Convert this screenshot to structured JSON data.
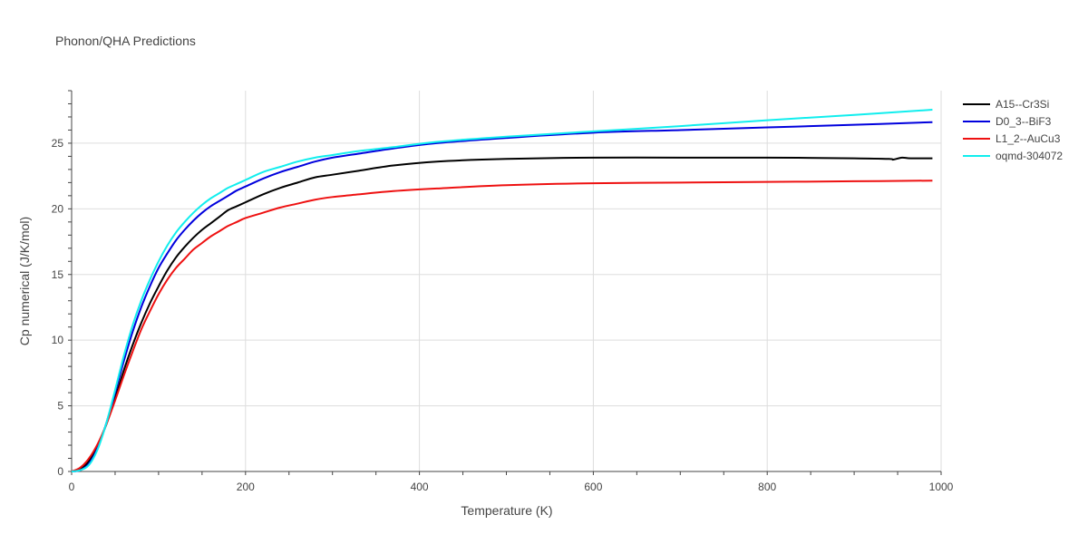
{
  "chart_data": {
    "type": "line",
    "title": "Phonon/QHA Predictions",
    "xlabel": "Temperature (K)",
    "ylabel": "Cp numerical (J/K/mol)",
    "xlim": [
      0,
      1000
    ],
    "ylim": [
      0,
      29
    ],
    "xticks": [
      0,
      200,
      400,
      600,
      800,
      1000
    ],
    "yticks": [
      0,
      5,
      10,
      15,
      20,
      25
    ],
    "grid": true,
    "legend_position": "top-right",
    "series": [
      {
        "name": "A15--Cr3Si",
        "color": "#000000",
        "x": [
          0,
          10,
          20,
          30,
          40,
          50,
          60,
          70,
          80,
          90,
          100,
          110,
          120,
          130,
          140,
          150,
          160,
          170,
          180,
          190,
          200,
          220,
          240,
          260,
          280,
          300,
          330,
          370,
          420,
          500,
          600,
          700,
          800,
          900,
          940,
          945,
          955,
          965,
          990
        ],
        "y": [
          0,
          0.2,
          0.8,
          2.0,
          3.6,
          5.6,
          7.7,
          9.6,
          11.3,
          12.8,
          14.1,
          15.3,
          16.3,
          17.1,
          17.8,
          18.4,
          18.9,
          19.4,
          19.9,
          20.2,
          20.5,
          21.1,
          21.6,
          22.0,
          22.4,
          22.6,
          22.9,
          23.3,
          23.6,
          23.8,
          23.9,
          23.9,
          23.9,
          23.85,
          23.8,
          23.75,
          23.9,
          23.85,
          23.85
        ]
      },
      {
        "name": "D0_3--BiF3",
        "color": "#0000dd",
        "x": [
          0,
          10,
          20,
          30,
          40,
          50,
          60,
          70,
          80,
          90,
          100,
          110,
          120,
          130,
          140,
          150,
          160,
          170,
          180,
          190,
          200,
          220,
          240,
          260,
          280,
          300,
          330,
          370,
          420,
          500,
          600,
          700,
          800,
          900,
          990
        ],
        "y": [
          0,
          0.1,
          0.6,
          1.8,
          3.7,
          6.0,
          8.4,
          10.6,
          12.5,
          14.1,
          15.5,
          16.6,
          17.6,
          18.4,
          19.1,
          19.7,
          20.2,
          20.6,
          21.0,
          21.4,
          21.7,
          22.3,
          22.8,
          23.2,
          23.6,
          23.9,
          24.2,
          24.6,
          25.0,
          25.4,
          25.8,
          26.0,
          26.2,
          26.4,
          26.6
        ]
      },
      {
        "name": "L1_2--AuCu3",
        "color": "#ee1111",
        "x": [
          0,
          10,
          20,
          30,
          40,
          50,
          60,
          70,
          80,
          90,
          100,
          110,
          120,
          130,
          140,
          150,
          160,
          170,
          180,
          190,
          200,
          220,
          240,
          260,
          280,
          300,
          330,
          370,
          420,
          500,
          600,
          700,
          800,
          900,
          990
        ],
        "y": [
          0,
          0.3,
          1.0,
          2.1,
          3.6,
          5.4,
          7.3,
          9.1,
          10.8,
          12.2,
          13.5,
          14.6,
          15.5,
          16.2,
          16.9,
          17.4,
          17.9,
          18.3,
          18.7,
          19.0,
          19.3,
          19.7,
          20.1,
          20.4,
          20.7,
          20.9,
          21.1,
          21.35,
          21.55,
          21.8,
          21.95,
          22.0,
          22.05,
          22.1,
          22.15
        ]
      },
      {
        "name": "oqmd-304072",
        "color": "#11eeee",
        "x": [
          0,
          10,
          20,
          30,
          40,
          50,
          60,
          70,
          80,
          90,
          100,
          110,
          120,
          130,
          140,
          150,
          160,
          170,
          180,
          190,
          200,
          220,
          240,
          260,
          280,
          300,
          330,
          370,
          420,
          500,
          600,
          700,
          800,
          900,
          990
        ],
        "y": [
          0,
          0.1,
          0.5,
          1.7,
          3.7,
          6.2,
          8.8,
          11.1,
          13.0,
          14.6,
          16.0,
          17.2,
          18.2,
          19.0,
          19.7,
          20.3,
          20.8,
          21.2,
          21.6,
          21.9,
          22.2,
          22.8,
          23.2,
          23.6,
          23.9,
          24.1,
          24.4,
          24.7,
          25.1,
          25.5,
          25.9,
          26.3,
          26.75,
          27.15,
          27.55
        ]
      }
    ]
  }
}
